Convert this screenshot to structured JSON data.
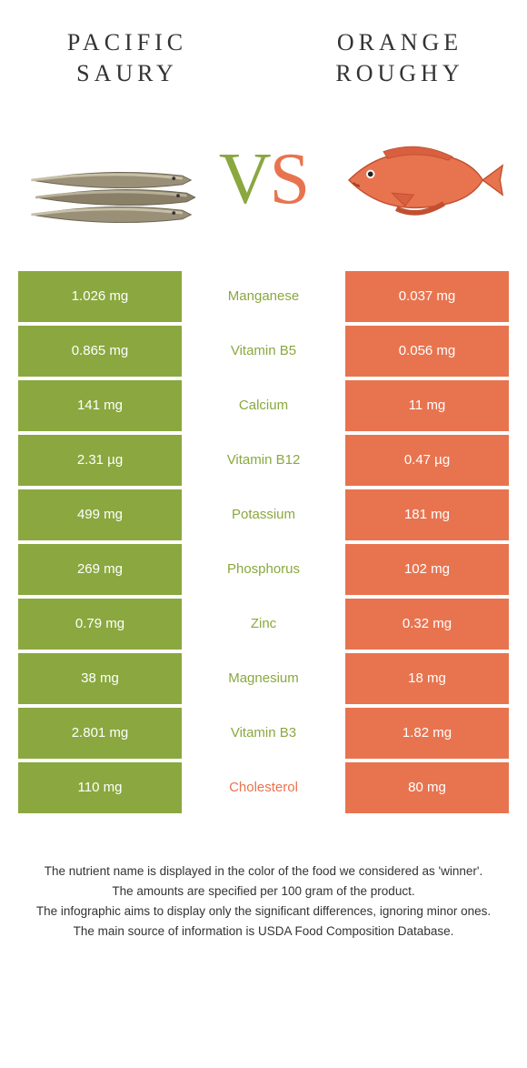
{
  "colors": {
    "left": "#8aa83f",
    "right": "#e8744f",
    "text_winner_left": "#8aa83f",
    "text_winner_right": "#e8744f",
    "body_text": "#333333"
  },
  "header": {
    "left_title_line1": "PACIFIC",
    "left_title_line2": "SAURY",
    "right_title_line1": "ORANGE",
    "right_title_line2": "ROUGHY",
    "vs_v": "V",
    "vs_s": "S"
  },
  "rows": [
    {
      "left": "1.026 mg",
      "name": "Manganese",
      "right": "0.037 mg",
      "winner": "left"
    },
    {
      "left": "0.865 mg",
      "name": "Vitamin B5",
      "right": "0.056 mg",
      "winner": "left"
    },
    {
      "left": "141 mg",
      "name": "Calcium",
      "right": "11 mg",
      "winner": "left"
    },
    {
      "left": "2.31 µg",
      "name": "Vitamin B12",
      "right": "0.47 µg",
      "winner": "left"
    },
    {
      "left": "499 mg",
      "name": "Potassium",
      "right": "181 mg",
      "winner": "left"
    },
    {
      "left": "269 mg",
      "name": "Phosphorus",
      "right": "102 mg",
      "winner": "left"
    },
    {
      "left": "0.79 mg",
      "name": "Zinc",
      "right": "0.32 mg",
      "winner": "left"
    },
    {
      "left": "38 mg",
      "name": "Magnesium",
      "right": "18 mg",
      "winner": "left"
    },
    {
      "left": "2.801 mg",
      "name": "Vitamin B3",
      "right": "1.82 mg",
      "winner": "left"
    },
    {
      "left": "110 mg",
      "name": "Cholesterol",
      "right": "80 mg",
      "winner": "right"
    }
  ],
  "footnotes": [
    "The nutrient name is displayed in the color of the food we considered as 'winner'.",
    "The amounts are specified per 100 gram of the product.",
    "The infographic aims to display only the significant differences, ignoring minor ones.",
    "The main source of information is USDA Food Composition Database."
  ]
}
